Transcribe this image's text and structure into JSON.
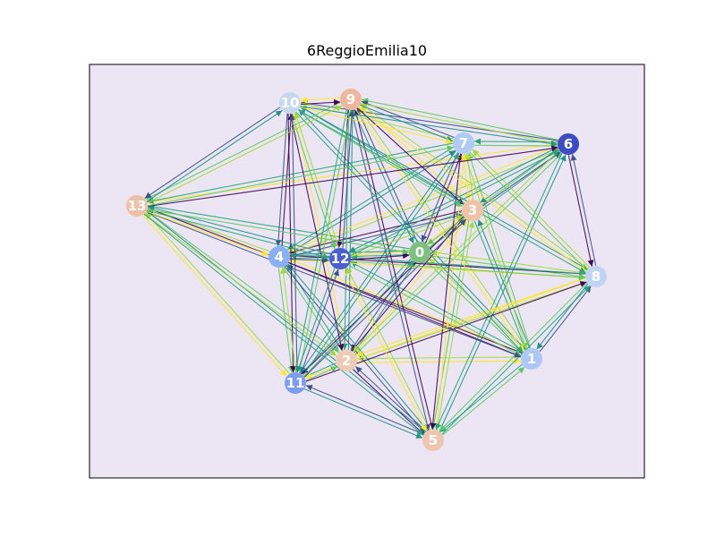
{
  "title": "6ReggioEmilia10",
  "colors": {
    "plot_background": "#ECE6F4",
    "frame": "#000000",
    "edge_palette": [
      "#440154",
      "#3b528b",
      "#21918c",
      "#27a47e",
      "#5ec962",
      "#a0da39",
      "#fde725"
    ]
  },
  "nodes": [
    {
      "id": "0",
      "color": "#7FBF7F"
    },
    {
      "id": "1",
      "color": "#ADC8F8"
    },
    {
      "id": "2",
      "color": "#EFCBB5"
    },
    {
      "id": "3",
      "color": "#EFC3AA"
    },
    {
      "id": "4",
      "color": "#89AFF4"
    },
    {
      "id": "5",
      "color": "#EFC7B0"
    },
    {
      "id": "6",
      "color": "#3D4CC2"
    },
    {
      "id": "7",
      "color": "#B0CBF6"
    },
    {
      "id": "8",
      "color": "#C0D4F4"
    },
    {
      "id": "9",
      "color": "#EFB79E"
    },
    {
      "id": "10",
      "color": "#C8D7F0"
    },
    {
      "id": "11",
      "color": "#7D9DF0"
    },
    {
      "id": "12",
      "color": "#4A5FD2"
    },
    {
      "id": "13",
      "color": "#EFC0A8"
    }
  ]
}
